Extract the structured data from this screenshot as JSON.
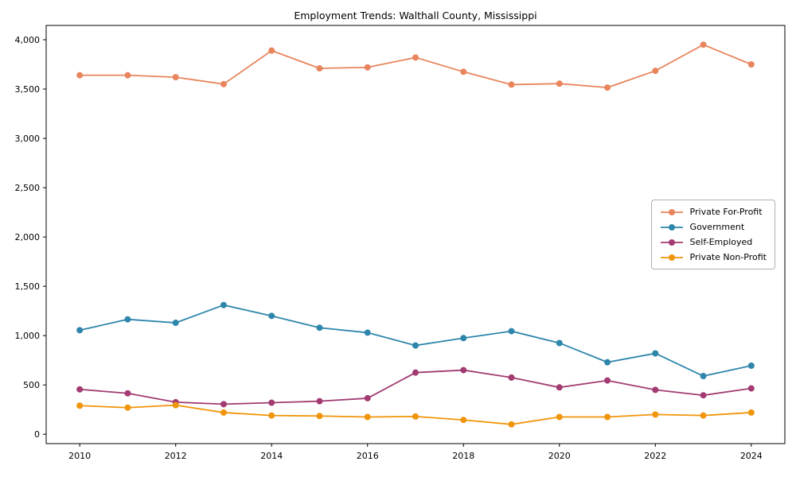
{
  "chart": {
    "title": "Employment Trends: Walthall County, Mississippi"
  },
  "chart_data": {
    "type": "line",
    "title": "Employment Trends: Walthall County, Mississippi",
    "xlabel": "",
    "ylabel": "",
    "grid": false,
    "legend_position": "center right",
    "x": [
      2010,
      2011,
      2012,
      2013,
      2014,
      2015,
      2016,
      2017,
      2018,
      2019,
      2020,
      2021,
      2022,
      2023,
      2024
    ],
    "xticks": [
      2010,
      2012,
      2014,
      2016,
      2018,
      2020,
      2022,
      2024
    ],
    "yticks": [
      0,
      500,
      1000,
      1500,
      2000,
      2500,
      3000,
      3500,
      4000
    ],
    "xlim": [
      2009.3,
      2024.7
    ],
    "ylim": [
      -95,
      4145
    ],
    "series": [
      {
        "name": "Private For-Profit",
        "color": "#e8855d",
        "values": [
          3640,
          3640,
          3620,
          3550,
          3890,
          3710,
          3720,
          3820,
          3675,
          3545,
          3555,
          3515,
          3685,
          3950,
          3750
        ]
      },
      {
        "name": "Government",
        "color": "#2e86ab",
        "values": [
          1055,
          1165,
          1130,
          1310,
          1200,
          1080,
          1030,
          900,
          975,
          1045,
          925,
          730,
          820,
          590,
          695
        ]
      },
      {
        "name": "Self-Employed",
        "color": "#a23b72",
        "values": [
          455,
          415,
          325,
          305,
          320,
          335,
          365,
          625,
          650,
          575,
          475,
          545,
          450,
          395,
          465
        ]
      },
      {
        "name": "Private Non-Profit",
        "color": "#f0950a",
        "values": [
          290,
          270,
          295,
          220,
          190,
          185,
          175,
          180,
          145,
          100,
          175,
          175,
          200,
          190,
          220
        ]
      }
    ]
  }
}
